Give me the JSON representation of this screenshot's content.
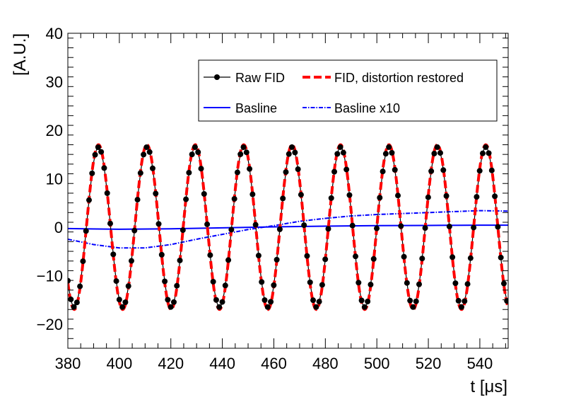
{
  "chart_data": {
    "type": "line",
    "xlabel": "t [μs]",
    "ylabel": "[A.U.]",
    "xlim": [
      380,
      551
    ],
    "ylim": [
      -25,
      40
    ],
    "x_ticks": [
      "380",
      "400",
      "420",
      "440",
      "460",
      "480",
      "500",
      "520",
      "540"
    ],
    "y_ticks": [
      "−20",
      "−10",
      "0",
      "10",
      "20",
      "30",
      "40"
    ],
    "legend": {
      "placement": "top-right",
      "entries": [
        "Raw FID",
        "FID, distortion restored",
        "Basline",
        "Basline x10"
      ]
    },
    "series": [
      {
        "name": "Raw FID",
        "style": "black line with round markers",
        "color": "#000000",
        "model": {
          "amplitude": 16.5,
          "period_us": 18.8,
          "first_min_t_us": 382.5
        },
        "peaks_t_us": [
          391.9,
          410.7,
          429.5,
          448.3,
          467.1,
          485.9,
          504.7,
          523.5,
          542.3
        ],
        "peak_value": 15.5,
        "trough_value": -17.5
      },
      {
        "name": "FID, distortion restored",
        "style": "thick red dashed",
        "color": "#ff0000",
        "model": {
          "amplitude": 17.0,
          "period_us": 18.8,
          "first_min_t_us": 382.5
        },
        "peak_value": 17.0,
        "trough_value": -17.0
      },
      {
        "name": "Basline",
        "style": "blue solid",
        "color": "#0000ff",
        "x": [
          380,
          400,
          420,
          440,
          460,
          480,
          500,
          520,
          540,
          551
        ],
        "y": [
          -0.3,
          -0.45,
          -0.35,
          -0.15,
          0.05,
          0.2,
          0.3,
          0.35,
          0.4,
          0.4
        ]
      },
      {
        "name": "Basline x10",
        "style": "blue dash-dot",
        "color": "#0000ff",
        "x": [
          380,
          390,
          400,
          410,
          420,
          430,
          440,
          450,
          460,
          470,
          480,
          490,
          500,
          510,
          520,
          530,
          540,
          551
        ],
        "y": [
          -2.5,
          -3.6,
          -4.3,
          -4.3,
          -3.6,
          -2.5,
          -1.5,
          -0.5,
          0.3,
          1.2,
          1.8,
          2.3,
          2.6,
          2.8,
          3.0,
          3.2,
          3.4,
          3.3
        ]
      }
    ]
  }
}
